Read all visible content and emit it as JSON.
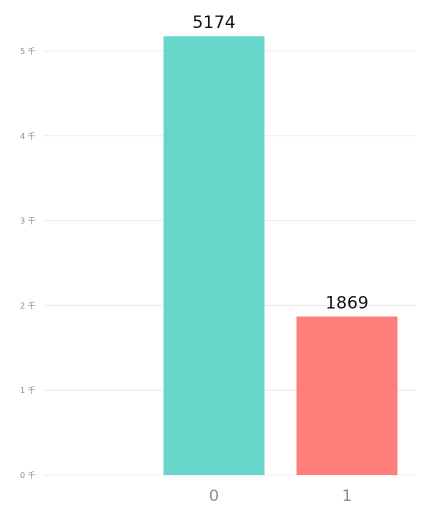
{
  "chart_data": {
    "type": "bar",
    "categories": [
      "0",
      "1"
    ],
    "values": [
      5174,
      1869
    ],
    "data_labels": [
      "5174",
      "1869"
    ],
    "colors": [
      "#67d5c9",
      "#fd7e7a"
    ],
    "y_ticks": [
      {
        "value": 0,
        "label": "0 千"
      },
      {
        "value": 1000,
        "label": "1 千"
      },
      {
        "value": 2000,
        "label": "2 千"
      },
      {
        "value": 3000,
        "label": "3 千"
      },
      {
        "value": 4000,
        "label": "4 千"
      },
      {
        "value": 5000,
        "label": "5 千"
      }
    ],
    "ylim": [
      0,
      5000
    ],
    "grid": true,
    "legend": "none",
    "title": "",
    "xlabel": "",
    "ylabel": ""
  }
}
